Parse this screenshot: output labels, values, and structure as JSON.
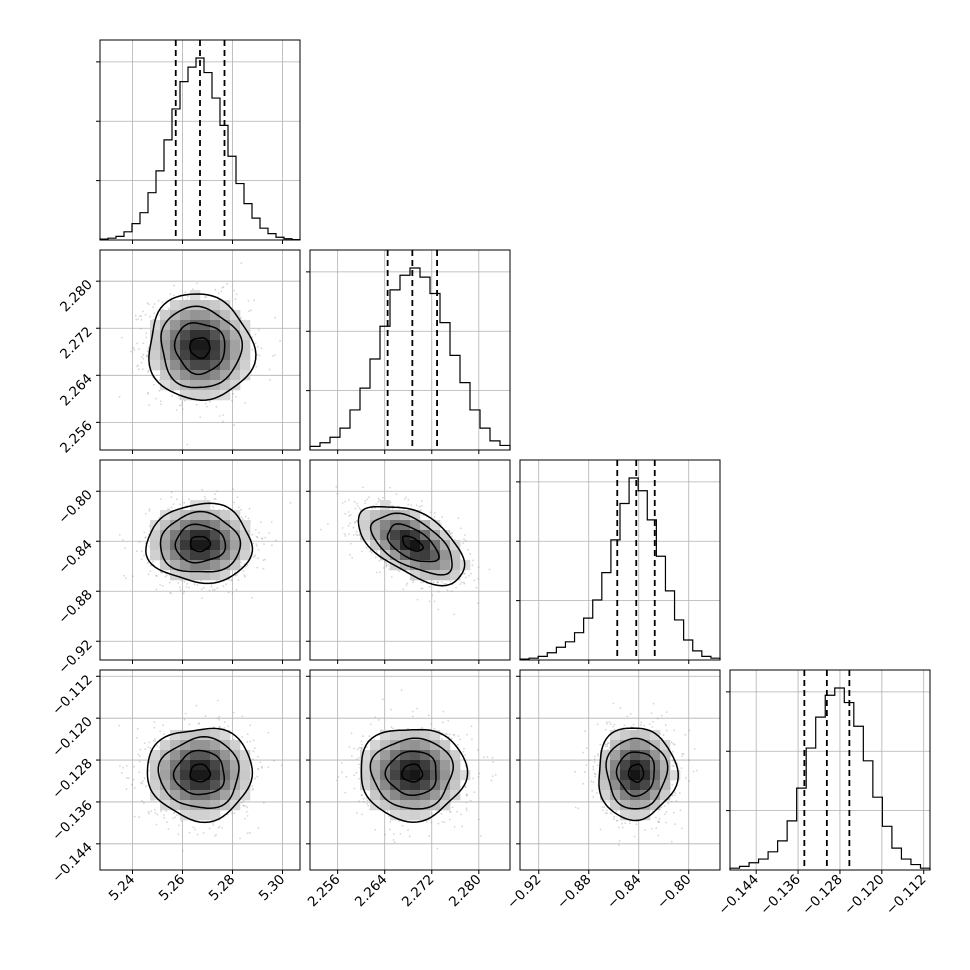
{
  "chart_data": {
    "type": "corner",
    "grid": true,
    "parameters": [
      {
        "mean": 5.267,
        "sd": 0.01,
        "range": [
          5.227,
          5.307
        ],
        "ticks": [
          5.24,
          5.26,
          5.28,
          5.3
        ],
        "tick_labels": [
          "5.24",
          "5.26",
          "5.28",
          "5.30"
        ],
        "quantiles": [
          5.2573,
          5.267,
          5.2768
        ],
        "hist": [
          0.005,
          0.01,
          0.02,
          0.045,
          0.09,
          0.15,
          0.26,
          0.38,
          0.55,
          0.72,
          0.87,
          0.95,
          1.0,
          0.92,
          0.78,
          0.63,
          0.46,
          0.31,
          0.2,
          0.12,
          0.065,
          0.035,
          0.015,
          0.007,
          0.002
        ]
      },
      {
        "mean": 2.2687,
        "sd": 0.0043,
        "range": [
          2.2513,
          2.2853
        ],
        "ticks": [
          2.256,
          2.264,
          2.272,
          2.28
        ],
        "tick_labels": [
          "2.256",
          "2.264",
          "2.272",
          "2.280"
        ],
        "quantiles": [
          2.2645,
          2.2687,
          2.2729
        ],
        "hist": [
          0.02,
          0.04,
          0.07,
          0.12,
          0.22,
          0.34,
          0.5,
          0.68,
          0.88,
          0.96,
          1.0,
          0.95,
          0.86,
          0.7,
          0.52,
          0.37,
          0.22,
          0.12,
          0.05,
          0.025
        ]
      },
      {
        "mean": -0.842,
        "sd": 0.015,
        "range": [
          -0.935,
          -0.775
        ],
        "ticks": [
          -0.92,
          -0.88,
          -0.84,
          -0.8
        ],
        "tick_labels": [
          "−0.92",
          "−0.88",
          "−0.84",
          "−0.80"
        ],
        "quantiles": [
          -0.8572,
          -0.842,
          -0.8272
        ],
        "hist": [
          0.005,
          0.01,
          0.02,
          0.04,
          0.07,
          0.1,
          0.15,
          0.23,
          0.33,
          0.48,
          0.66,
          0.86,
          1.0,
          0.93,
          0.77,
          0.57,
          0.38,
          0.22,
          0.11,
          0.05,
          0.02,
          0.01
        ]
      },
      {
        "mean": -0.1305,
        "sd": 0.0042,
        "range": [
          -0.149,
          -0.1108
        ],
        "ticks": [
          -0.144,
          -0.136,
          -0.128,
          -0.12,
          -0.112
        ],
        "tick_labels": [
          "−0.144",
          "−0.136",
          "−0.128",
          "−0.120",
          "−0.112"
        ],
        "quantiles": [
          -0.1348,
          -0.1305,
          -0.1262
        ],
        "hist": [
          0.01,
          0.02,
          0.04,
          0.06,
          0.1,
          0.16,
          0.27,
          0.45,
          0.67,
          0.84,
          0.96,
          1.0,
          0.92,
          0.79,
          0.6,
          0.4,
          0.24,
          0.12,
          0.06,
          0.03,
          0.01
        ]
      }
    ],
    "correlations": {
      "1-0": -0.05,
      "2-0": 0.0,
      "2-1": -0.55,
      "3-0": 0.0,
      "3-1": 0.0,
      "3-2": 0.0
    }
  }
}
